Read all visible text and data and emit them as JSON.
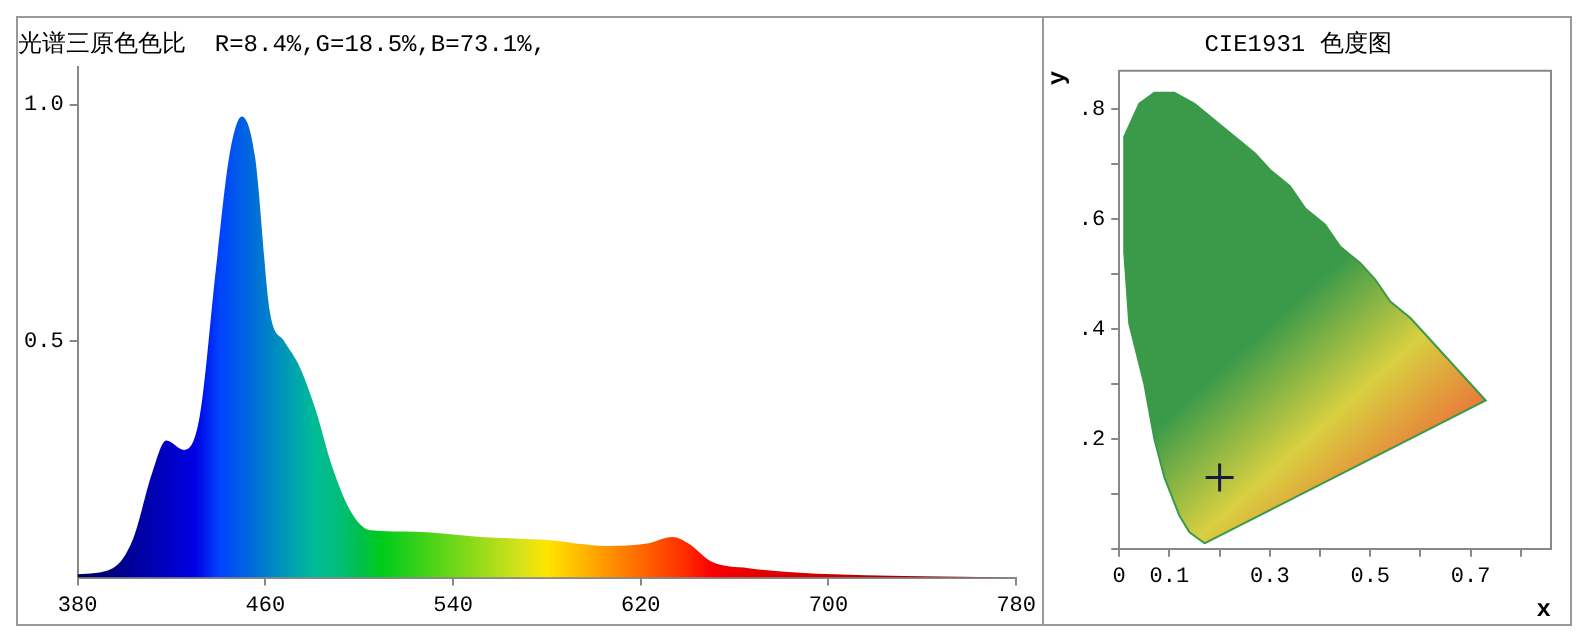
{
  "chart_data": [
    {
      "type": "area",
      "title": "光谱三原色色比  R=8.4%,G=18.5%,B=73.1%,",
      "xlim": [
        380,
        780
      ],
      "ylim": [
        0,
        1.08
      ],
      "xticks": [
        380,
        460,
        540,
        620,
        700,
        780
      ],
      "yticks": [
        {
          "value": 0.5,
          "label": "0.5"
        },
        {
          "value": 1.0,
          "label": "1.0"
        }
      ],
      "grid": false,
      "series": [
        {
          "color": "#0047ff",
          "x": [
            380,
            395,
            403.5,
            411.7,
            417.8,
            425.4,
            432,
            439,
            444.6,
            450,
            455.6,
            462,
            468,
            474.7,
            481.5,
            488.4,
            496.6,
            504.8,
            524,
            551.4,
            578.8,
            606,
            622.6,
            633.5,
            640.4,
            650,
            666,
            688,
            716,
            780
          ],
          "values": [
            0.007,
            0.02,
            0.08,
            0.22,
            0.29,
            0.27,
            0.34,
            0.655,
            0.89,
            0.975,
            0.89,
            0.56,
            0.5,
            0.445,
            0.354,
            0.236,
            0.138,
            0.1,
            0.097,
            0.086,
            0.08,
            0.067,
            0.072,
            0.086,
            0.072,
            0.034,
            0.02,
            0.01,
            0.005,
            0
          ]
        }
      ]
    },
    {
      "type": "scatter",
      "title": "CIE1931 色度图",
      "xlabel": "x",
      "ylabel": "y",
      "xlim": [
        0,
        0.86
      ],
      "ylim": [
        0,
        0.87
      ],
      "grid": false,
      "xticks": [
        {
          "value": 0,
          "label": "0"
        },
        {
          "value": 0.1,
          "label": "0.1"
        },
        {
          "value": 0.2,
          "label": null
        },
        {
          "value": 0.3,
          "label": "0.3"
        },
        {
          "value": 0.4,
          "label": null
        },
        {
          "value": 0.5,
          "label": "0.5"
        },
        {
          "value": 0.6,
          "label": null
        },
        {
          "value": 0.7,
          "label": "0.7"
        },
        {
          "value": 0.8,
          "label": null
        }
      ],
      "yticks": [
        {
          "value": 0,
          "label": null
        },
        {
          "value": 0.1,
          "label": null
        },
        {
          "value": 0.2,
          "label": ".2"
        },
        {
          "value": 0.3,
          "label": null
        },
        {
          "value": 0.4,
          "label": ".4"
        },
        {
          "value": 0.5,
          "label": null
        },
        {
          "value": 0.6,
          "label": ".6"
        },
        {
          "value": 0.7,
          "label": null
        },
        {
          "value": 0.8,
          "label": ".8"
        }
      ],
      "series": [
        {
          "type": "area",
          "color": "#3b9a4a",
          "marker": "none",
          "x": [
            0.17,
            0.14,
            0.12,
            0.09,
            0.07,
            0.05,
            0.02,
            0.01,
            0.01,
            0.04,
            0.07,
            0.11,
            0.15,
            0.19,
            0.23,
            0.27,
            0.3,
            0.34,
            0.37,
            0.41,
            0.44,
            0.48,
            0.51,
            0.54,
            0.58,
            0.6,
            0.63,
            0.65,
            0.67,
            0.69,
            0.73,
            0.17
          ],
          "values": [
            0.01,
            0.03,
            0.06,
            0.13,
            0.2,
            0.3,
            0.41,
            0.54,
            0.75,
            0.81,
            0.83,
            0.83,
            0.81,
            0.78,
            0.75,
            0.72,
            0.69,
            0.66,
            0.62,
            0.59,
            0.55,
            0.52,
            0.49,
            0.45,
            0.42,
            0.4,
            0.37,
            0.35,
            0.33,
            0.31,
            0.27,
            0.01
          ]
        },
        {
          "color": "#1a1a40",
          "marker": "cross",
          "x": [
            0.2
          ],
          "values": [
            0.13
          ]
        }
      ]
    }
  ]
}
